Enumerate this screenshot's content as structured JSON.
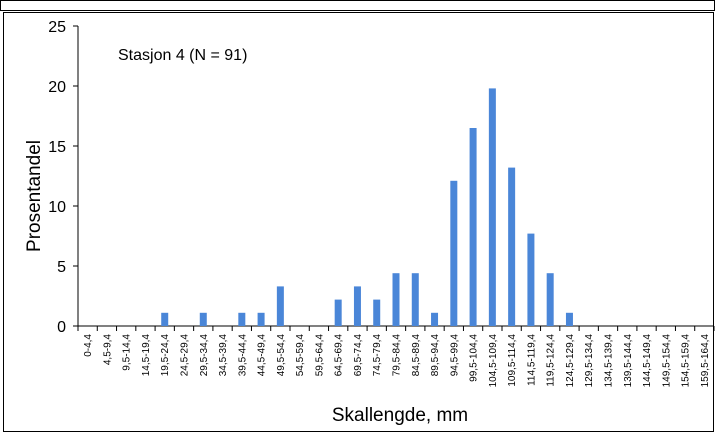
{
  "chart_data": {
    "type": "bar",
    "annotation": "Stasjon 4 (N = 91)",
    "xlabel": "Skallengde, mm",
    "ylabel": "Prosentandel",
    "ylim": [
      0,
      25
    ],
    "yticks": [
      0,
      5,
      10,
      15,
      20,
      25
    ],
    "grid": false,
    "legend": "none",
    "bar_color": "#4a86d8",
    "categories": [
      "0-4,4",
      "4,5-9,4",
      "9,5-14,4",
      "14,5-19,4",
      "19,5-24,4",
      "24,5-29,4",
      "29,5-34,4",
      "34,5-39,4",
      "39,5-44,4",
      "44,5-49,4",
      "49,5-54,4",
      "54,5-59,4",
      "59,5-64,4",
      "64,5-69,4",
      "69,5-74,4",
      "74,5-79,4",
      "79,5-84,4",
      "84,5-89,4",
      "89,5-94,4",
      "94,5-99,4",
      "99,5-104,4",
      "104,5-109,4",
      "109,5-114,4",
      "114,5-119,4",
      "119,5-124,4",
      "124,5-129,4",
      "129,5-134,4",
      "134,5-139,4",
      "139,5-144,4",
      "144,5-149,4",
      "149,5-154,4",
      "154,5-159,4",
      "159,5-164,4"
    ],
    "values": [
      0,
      0,
      0,
      0,
      1.1,
      0,
      1.1,
      0,
      1.1,
      1.1,
      3.3,
      0,
      0,
      2.2,
      3.3,
      2.2,
      4.4,
      4.4,
      1.1,
      12.1,
      16.5,
      19.8,
      13.2,
      7.7,
      4.4,
      1.1,
      0,
      0,
      0,
      0,
      0,
      0,
      0
    ]
  }
}
